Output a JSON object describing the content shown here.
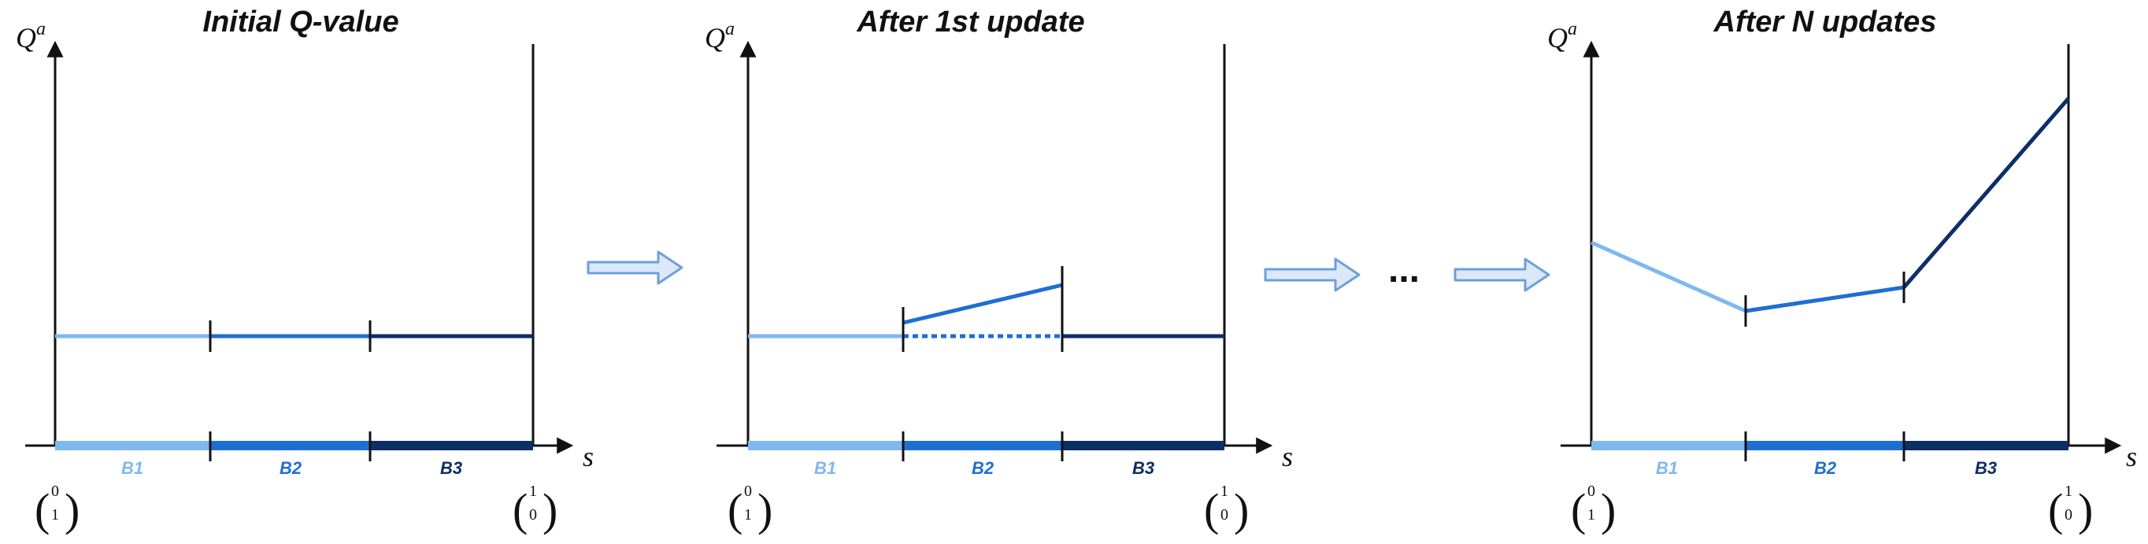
{
  "colors": {
    "b1": "#7fb8f0",
    "b2": "#1d6fd2",
    "b3": "#0c2f66",
    "axis": "#111111",
    "arrow_fill": "#dbe8f8",
    "arrow_stroke": "#6f9fd6"
  },
  "axis_labels": {
    "y": "Q",
    "y_sup": "a",
    "x": "s"
  },
  "segments": [
    "B1",
    "B2",
    "B3"
  ],
  "left_vector": [
    "0",
    "1"
  ],
  "right_vector": [
    "1",
    "0"
  ],
  "ellipsis": "...",
  "panels": [
    {
      "title": "Initial Q-value"
    },
    {
      "title": "After 1st update"
    },
    {
      "title": "After N updates"
    }
  ]
}
